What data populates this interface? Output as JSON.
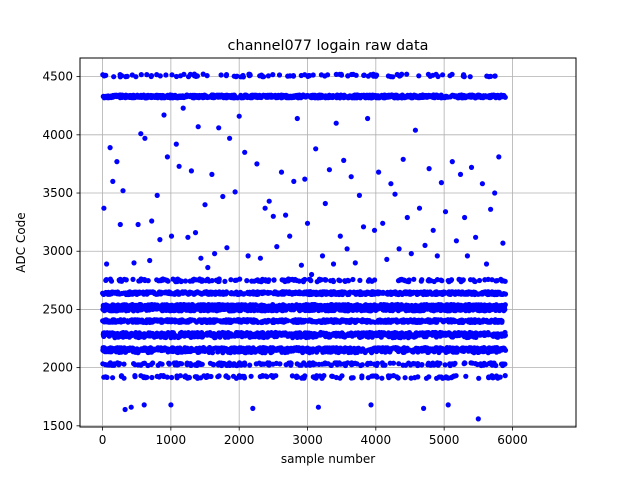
{
  "chart_data": {
    "type": "scatter",
    "title": "channel077 logain raw data",
    "xlabel": "sample number",
    "ylabel": "ADC Code",
    "xlim": [
      -330,
      6930
    ],
    "ylim": [
      1490,
      4660
    ],
    "x_ticks": [
      0,
      1000,
      2000,
      3000,
      4000,
      5000,
      6000
    ],
    "y_ticks": [
      1500,
      2000,
      2500,
      3000,
      3500,
      4000,
      4500
    ],
    "x_tick_labels": [
      "0",
      "1000",
      "2000",
      "3000",
      "4000",
      "5000",
      "6000"
    ],
    "y_tick_labels": [
      "1500",
      "2000",
      "2500",
      "3000",
      "3500",
      "4000",
      "4500"
    ],
    "grid": true,
    "marker_color": "#0000ff",
    "sample_count": 5900,
    "series": [
      {
        "values_note": "",
        "levels": [
          {
            "y": 4330,
            "points": 900
          },
          {
            "y": 2640,
            "points": 600
          },
          {
            "y": 2530,
            "points": 600
          },
          {
            "y": 2500,
            "points": 600
          },
          {
            "y": 2400,
            "points": 600
          },
          {
            "y": 2290,
            "points": 550
          },
          {
            "y": 2270,
            "points": 250
          },
          {
            "y": 2160,
            "points": 500
          },
          {
            "y": 2140,
            "points": 250
          },
          {
            "y": 2750,
            "points": 180
          },
          {
            "y": 4510,
            "points": 110
          },
          {
            "y": 2030,
            "points": 220
          },
          {
            "y": 1920,
            "points": 140
          }
        ],
        "outliers": [
          [
            20,
            3370
          ],
          [
            60,
            2890
          ],
          [
            110,
            3890
          ],
          [
            150,
            3600
          ],
          [
            210,
            3770
          ],
          [
            260,
            3230
          ],
          [
            300,
            3520
          ],
          [
            330,
            1640
          ],
          [
            420,
            1660
          ],
          [
            460,
            2900
          ],
          [
            520,
            3230
          ],
          [
            560,
            4010
          ],
          [
            610,
            1680
          ],
          [
            620,
            3970
          ],
          [
            690,
            2920
          ],
          [
            720,
            3260
          ],
          [
            800,
            3480
          ],
          [
            840,
            3100
          ],
          [
            900,
            4170
          ],
          [
            950,
            3810
          ],
          [
            1000,
            1680
          ],
          [
            1010,
            3130
          ],
          [
            1080,
            3920
          ],
          [
            1120,
            3730
          ],
          [
            1180,
            4230
          ],
          [
            1250,
            3120
          ],
          [
            1300,
            3690
          ],
          [
            1360,
            3160
          ],
          [
            1400,
            4070
          ],
          [
            1440,
            2940
          ],
          [
            1500,
            3400
          ],
          [
            1540,
            2860
          ],
          [
            1600,
            3660
          ],
          [
            1640,
            2980
          ],
          [
            1700,
            4060
          ],
          [
            1760,
            3470
          ],
          [
            1820,
            3030
          ],
          [
            1860,
            3970
          ],
          [
            1940,
            3510
          ],
          [
            2000,
            4160
          ],
          [
            2080,
            3850
          ],
          [
            2130,
            2960
          ],
          [
            2200,
            1650
          ],
          [
            2260,
            3750
          ],
          [
            2310,
            2940
          ],
          [
            2380,
            3370
          ],
          [
            2440,
            3430
          ],
          [
            2500,
            3300
          ],
          [
            2550,
            3040
          ],
          [
            2620,
            3680
          ],
          [
            2680,
            3310
          ],
          [
            2740,
            3130
          ],
          [
            2800,
            3600
          ],
          [
            2850,
            4140
          ],
          [
            2910,
            2880
          ],
          [
            2960,
            3620
          ],
          [
            3000,
            3240
          ],
          [
            3060,
            2800
          ],
          [
            3120,
            3880
          ],
          [
            3160,
            1660
          ],
          [
            3220,
            2960
          ],
          [
            3260,
            3410
          ],
          [
            3320,
            3700
          ],
          [
            3380,
            2890
          ],
          [
            3420,
            4100
          ],
          [
            3480,
            3130
          ],
          [
            3530,
            3780
          ],
          [
            3580,
            3020
          ],
          [
            3640,
            3640
          ],
          [
            3700,
            2900
          ],
          [
            3760,
            3480
          ],
          [
            3820,
            3210
          ],
          [
            3880,
            4140
          ],
          [
            3930,
            1680
          ],
          [
            3980,
            3180
          ],
          [
            4040,
            3680
          ],
          [
            4100,
            3240
          ],
          [
            4160,
            2930
          ],
          [
            4220,
            3580
          ],
          [
            4280,
            3490
          ],
          [
            4340,
            3020
          ],
          [
            4400,
            3790
          ],
          [
            4460,
            3290
          ],
          [
            4520,
            2980
          ],
          [
            4580,
            4040
          ],
          [
            4640,
            3370
          ],
          [
            4700,
            1650
          ],
          [
            4720,
            3050
          ],
          [
            4780,
            3710
          ],
          [
            4840,
            3180
          ],
          [
            4900,
            2960
          ],
          [
            4960,
            3590
          ],
          [
            5020,
            3340
          ],
          [
            5060,
            1680
          ],
          [
            5120,
            3770
          ],
          [
            5180,
            3090
          ],
          [
            5240,
            3660
          ],
          [
            5300,
            3290
          ],
          [
            5340,
            2960
          ],
          [
            5400,
            3720
          ],
          [
            5460,
            3120
          ],
          [
            5500,
            1560
          ],
          [
            5560,
            3580
          ],
          [
            5620,
            2890
          ],
          [
            5680,
            3360
          ],
          [
            5740,
            3500
          ],
          [
            5800,
            3810
          ],
          [
            5860,
            3070
          ]
        ]
      }
    ]
  }
}
